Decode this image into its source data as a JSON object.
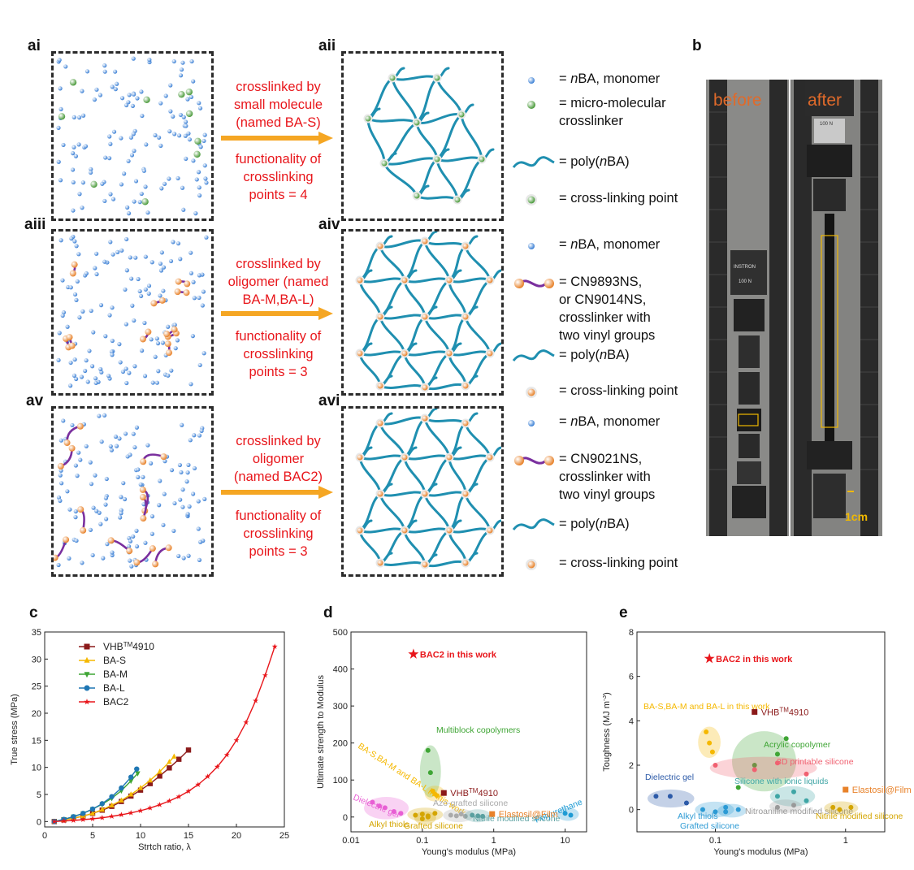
{
  "panels": {
    "ai": "ai",
    "aii": "aii",
    "aiii": "aiii",
    "aiv": "aiv",
    "av": "av",
    "avi": "avi",
    "b": "b",
    "c": "c",
    "d": "d",
    "e": "e"
  },
  "row1": {
    "desc_lines": [
      "crosslinked by",
      "small molecule",
      "(named BA-S)"
    ],
    "func_lines": [
      "functionality of",
      "crosslinking",
      "points = 4"
    ],
    "legend": [
      {
        "icon": "blue-monomer-icon",
        "text_html": "= <i>n</i>BA, monomer"
      },
      {
        "icon": "green-crosslinker-icon",
        "lines": [
          "= micro-molecular",
          "crosslinker"
        ]
      },
      {
        "icon": "teal-chain-icon",
        "text_html": "= poly(<i>n</i>BA)"
      },
      {
        "icon": "green-crosslink-point-icon",
        "text": "= cross-linking point"
      }
    ]
  },
  "row2": {
    "desc_lines": [
      "crosslinked by",
      "oligomer (named",
      "BA-M,BA-L)"
    ],
    "func_lines": [
      "functionality of",
      "crosslinking",
      "points = 3"
    ],
    "legend": [
      {
        "icon": "blue-monomer-icon",
        "text_html": "= <i>n</i>BA, monomer"
      },
      {
        "icon": "orange-oligomer-crosslinker-icon",
        "lines": [
          "= CN9893NS,",
          "or CN9014NS,",
          "crosslinker with",
          "two vinyl groups"
        ]
      },
      {
        "icon": "teal-chain-icon",
        "text_html": "= poly(<i>n</i>BA)"
      },
      {
        "icon": "orange-crosslink-point-icon",
        "text": "= cross-linking point"
      }
    ]
  },
  "row3": {
    "desc_lines": [
      "crosslinked by",
      "oligomer",
      "(named BAC2)"
    ],
    "func_lines": [
      "functionality of",
      "crosslinking",
      "points = 3"
    ],
    "legend": [
      {
        "icon": "blue-monomer-icon",
        "text_html": "= <i>n</i>BA, monomer"
      },
      {
        "icon": "purple-oligomer-crosslinker-icon",
        "lines": [
          "= CN9021NS,",
          "crosslinker with",
          "two vinyl groups"
        ]
      },
      {
        "icon": "teal-chain-icon",
        "text_html": "= poly(<i>n</i>BA)"
      },
      {
        "icon": "orange-crosslink-point-icon",
        "text": "= cross-linking point"
      }
    ]
  },
  "photo": {
    "before": "before",
    "after": "after",
    "scale": "1cm",
    "top_clamp_text": "100 N",
    "mid_clamp_text": "100 N",
    "brand": "INSTRON"
  },
  "colors": {
    "red": "#e8161b",
    "orange_arrow": "#f5a623",
    "teal": "#1f8fb0",
    "purple": "#7a2f9e",
    "blue_dot": "#3a7fd5",
    "green_dot": "#4a9a3a",
    "orange_dot": "#e8822a"
  },
  "chart_data": [
    {
      "id": "c",
      "type": "line",
      "xlabel": "Strtch ratio, λ",
      "ylabel": "True stress (MPa)",
      "xlim": [
        0,
        25
      ],
      "ylim": [
        -1,
        35
      ],
      "xticks": [
        0,
        5,
        10,
        15,
        20,
        25
      ],
      "yticks": [
        0,
        5,
        10,
        15,
        20,
        25,
        30,
        35
      ],
      "legend_position": "top-left",
      "series": [
        {
          "name": "VHB™4910",
          "name_html": "VHB<sup>TM</sup>4910",
          "color": "#8b1a1a",
          "marker": "square",
          "x": [
            1,
            2,
            3,
            4,
            5,
            6,
            7,
            8,
            9,
            10,
            11,
            12,
            13,
            14,
            15
          ],
          "y": [
            0,
            0.3,
            0.6,
            1.0,
            1.5,
            2.1,
            2.8,
            3.7,
            4.7,
            5.8,
            7.0,
            8.4,
            9.9,
            11.5,
            13.2
          ]
        },
        {
          "name": "BA-S",
          "color": "#f5b800",
          "marker": "triangle-up",
          "x": [
            1,
            2,
            3,
            4,
            5,
            6,
            7,
            8,
            9,
            10,
            11,
            12,
            13,
            13.5
          ],
          "y": [
            0,
            0.3,
            0.6,
            1.0,
            1.5,
            2.2,
            3.0,
            3.9,
            5.0,
            6.2,
            7.6,
            9.2,
            11.0,
            12.0
          ]
        },
        {
          "name": "BA-M",
          "color": "#3fa535",
          "marker": "triangle-down",
          "x": [
            1,
            2,
            3,
            4,
            5,
            6,
            7,
            8,
            9,
            9.7
          ],
          "y": [
            0,
            0.4,
            0.9,
            1.5,
            2.3,
            3.2,
            4.3,
            5.7,
            7.5,
            8.9
          ]
        },
        {
          "name": "BA-L",
          "color": "#1f77b4",
          "marker": "circle",
          "x": [
            1,
            2,
            3,
            4,
            5,
            6,
            7,
            8,
            9,
            9.6
          ],
          "y": [
            0,
            0.4,
            0.9,
            1.5,
            2.3,
            3.3,
            4.6,
            6.2,
            8.2,
            9.7
          ]
        },
        {
          "name": "BAC2",
          "color": "#e8161b",
          "marker": "star",
          "x": [
            1,
            2,
            3,
            4,
            5,
            6,
            7,
            8,
            9,
            10,
            11,
            12,
            13,
            14,
            15,
            16,
            17,
            18,
            19,
            20,
            21,
            22,
            23,
            24
          ],
          "y": [
            0,
            0.1,
            0.2,
            0.35,
            0.5,
            0.7,
            0.95,
            1.25,
            1.6,
            2.0,
            2.5,
            3.1,
            3.8,
            4.6,
            5.6,
            6.8,
            8.3,
            10.1,
            12.3,
            15.0,
            18.3,
            22.3,
            27.0,
            32.3
          ]
        }
      ]
    },
    {
      "id": "d",
      "type": "scatter",
      "xscale": "log",
      "xlabel": "Young's modulus (MPa)",
      "ylabel": "Ultimate strength to Modulus",
      "xlim": [
        0.01,
        20
      ],
      "ylim": [
        -40,
        500
      ],
      "xticks": [
        0.01,
        0.1,
        1,
        10
      ],
      "xticklabels": [
        "0.01",
        "0.1",
        "1",
        "10"
      ],
      "yticks": [
        0,
        100,
        200,
        300,
        400,
        500
      ],
      "points": [
        {
          "label": "BAC2 in this work",
          "x": 0.075,
          "y": 440,
          "color": "#e8161b",
          "marker": "star"
        },
        {
          "label": "VHB™4910",
          "label_html": "VHB<sup>TM</sup>4910",
          "x": 0.2,
          "y": 65,
          "color": "#8b1a1a",
          "marker": "square"
        },
        {
          "label": "Elastosil@Film",
          "x": 0.95,
          "y": 8,
          "color": "#e8822a",
          "marker": "square"
        }
      ],
      "groups": [
        {
          "label": "Multiblock copolymers",
          "color": "#3fa535",
          "x": [
            0.12,
            0.13,
            0.14
          ],
          "y": [
            180,
            120,
            70
          ]
        },
        {
          "label": "BA-S,BA-M and BA-L in this work",
          "color": "#f5b800",
          "x": [
            0.14,
            0.15,
            0.16
          ],
          "y": [
            70,
            62,
            58
          ]
        },
        {
          "label": "Dielectric gel",
          "color": "#e85fd4",
          "x": [
            0.02,
            0.025,
            0.03,
            0.04,
            0.05
          ],
          "y": [
            40,
            30,
            25,
            15,
            10
          ]
        },
        {
          "label": "Alkyl thiols",
          "color": "#d4a500",
          "x": [
            0.08,
            0.1,
            0.12,
            0.15
          ],
          "y": [
            5,
            8,
            3,
            10
          ]
        },
        {
          "label": "Azo-grafted silicone",
          "color": "#aaaaaa",
          "x": [
            0.25,
            0.3,
            0.35,
            0.4
          ],
          "y": [
            5,
            3,
            8,
            2
          ]
        },
        {
          "label": "Grafted silicone",
          "color": "#d4a500",
          "x": [
            0.1,
            0.12
          ],
          "y": [
            -5,
            0
          ]
        },
        {
          "label": "Nitrile modified silicone",
          "color": "#5aa0a0",
          "x": [
            0.5,
            0.6,
            0.7
          ],
          "y": [
            5,
            3,
            2
          ]
        },
        {
          "label": "Polyurethane",
          "color": "#1f9bd4",
          "x": [
            10,
            12
          ],
          "y": [
            10,
            5
          ]
        }
      ]
    },
    {
      "id": "e",
      "type": "scatter",
      "xscale": "log",
      "xlabel": "Young's modulus (MPa)",
      "ylabel": "Toughness (MJ m⁻³)",
      "ylabel_html": "Toughness (MJ m<tspan baseline-shift='super' font-size='8'>-3</tspan>)",
      "xlim": [
        0.025,
        2
      ],
      "ylim": [
        -1,
        8
      ],
      "xticks": [
        0.1,
        1
      ],
      "xticklabels": [
        "0.1",
        "1"
      ],
      "yticks": [
        0,
        2,
        4,
        6,
        8
      ],
      "points": [
        {
          "label": "BAC2 in this work",
          "x": 0.09,
          "y": 6.8,
          "color": "#e8161b",
          "marker": "star"
        },
        {
          "label": "VHB™4910",
          "label_html": "VHB<sup>TM</sup>4910",
          "x": 0.2,
          "y": 4.4,
          "color": "#8b1a1a",
          "marker": "square"
        },
        {
          "label": "Elastosil@Film",
          "x": 1.0,
          "y": 0.9,
          "color": "#e8822a",
          "marker": "square"
        }
      ],
      "groups": [
        {
          "label": "BA-S,BA-M and BA-L in this work",
          "color": "#f5b800",
          "x": [
            0.085,
            0.09,
            0.095
          ],
          "y": [
            3.5,
            3.0,
            2.6
          ]
        },
        {
          "label": "Acrylic copolymer",
          "color": "#3fa535",
          "x": [
            0.15,
            0.2,
            0.3,
            0.35
          ],
          "y": [
            1,
            2,
            2.5,
            3.2
          ]
        },
        {
          "label": "3D printable silicone",
          "color": "#f06070",
          "x": [
            0.1,
            0.2,
            0.3,
            0.5
          ],
          "y": [
            2,
            1.8,
            2.1,
            1.6
          ]
        },
        {
          "label": "Dielectric gel",
          "color": "#2c5aa8",
          "x": [
            0.035,
            0.045,
            0.06
          ],
          "y": [
            0.6,
            0.6,
            0.3
          ]
        },
        {
          "label": "Silicone with ionic liquids",
          "color": "#3fa5a5",
          "x": [
            0.3,
            0.4,
            0.5
          ],
          "y": [
            0.6,
            0.8,
            0.4
          ]
        },
        {
          "label": "Alkyl thiols",
          "color": "#2c9ad4",
          "x": [
            0.08,
            0.1,
            0.12
          ],
          "y": [
            0,
            -0.1,
            0.1
          ]
        },
        {
          "label": "Grafted silicone",
          "color": "#2c9ad4",
          "x": [
            0.12,
            0.15
          ],
          "y": [
            -0.1,
            0
          ]
        },
        {
          "label": "Nitroaniline modified silicone",
          "color": "#999999",
          "x": [
            0.3,
            0.4
          ],
          "y": [
            0.1,
            0.2
          ]
        },
        {
          "label": "Nitrile modified silicone",
          "color": "#d4a500",
          "x": [
            0.8,
            0.9,
            1.1
          ],
          "y": [
            0.1,
            0,
            0.1
          ]
        }
      ]
    }
  ]
}
